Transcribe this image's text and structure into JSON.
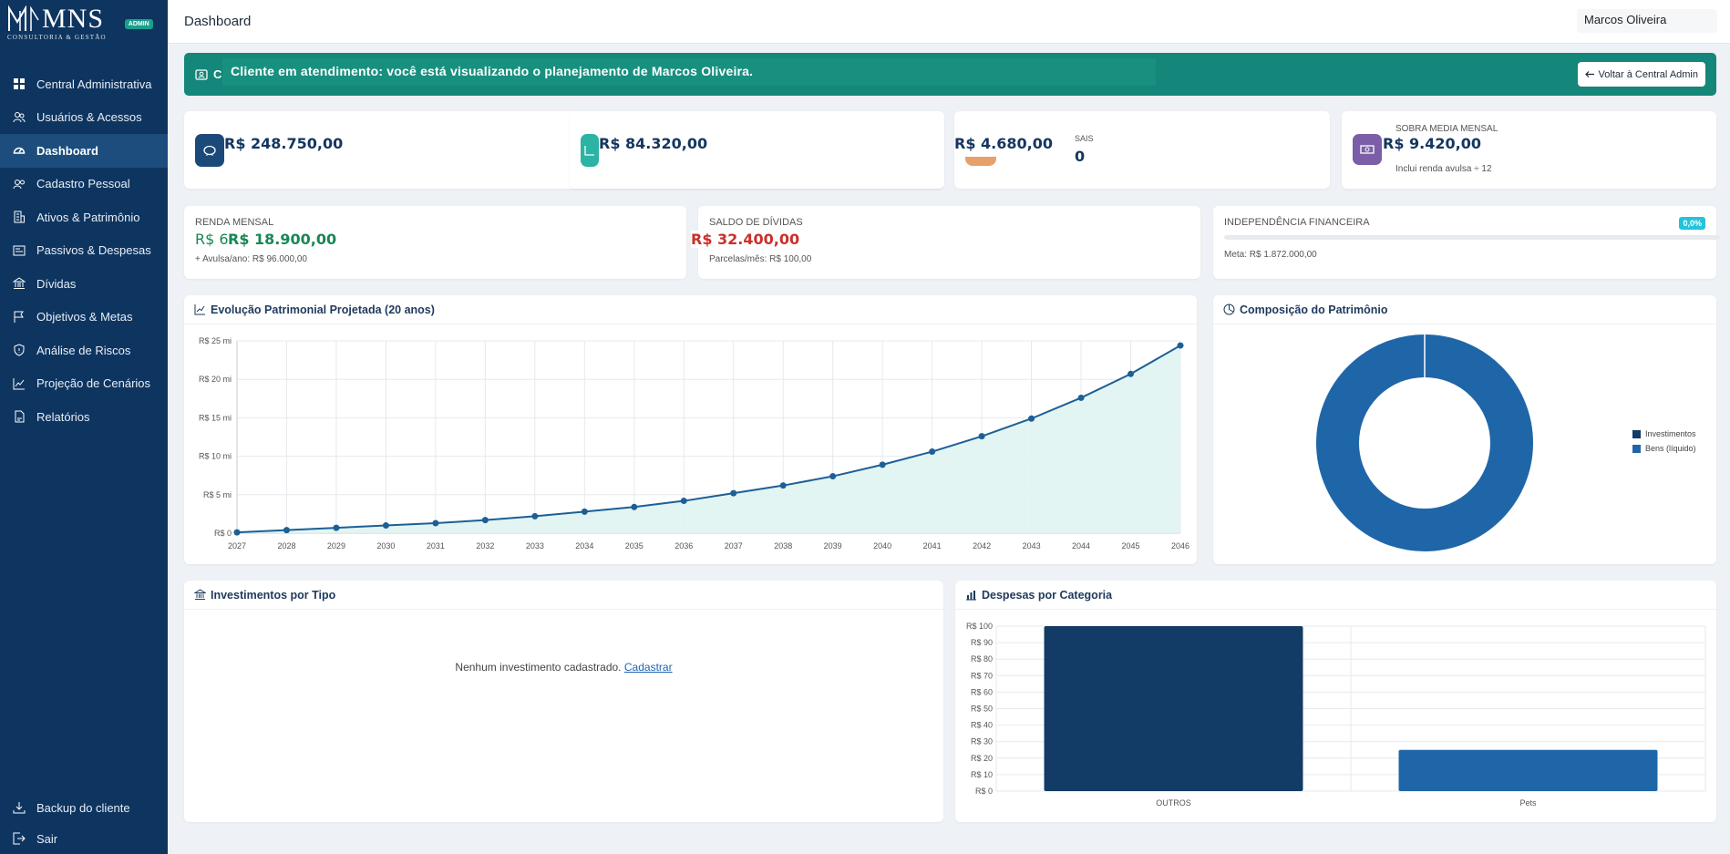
{
  "brand": {
    "name": "MNS",
    "sub": "CONSULTORIA & GESTÃO",
    "badge": "ADMIN"
  },
  "sidebar": {
    "items": [
      {
        "label": "Central Administrativa",
        "icon": "grid-icon"
      },
      {
        "label": "Usuários & Acessos",
        "icon": "users-icon"
      },
      {
        "label": "Dashboard",
        "icon": "speedometer-icon",
        "active": true
      },
      {
        "label": "Cadastro Pessoal",
        "icon": "person-card-icon"
      },
      {
        "label": "Ativos & Patrimônio",
        "icon": "building-icon"
      },
      {
        "label": "Passivos & Despesas",
        "icon": "receipt-icon"
      },
      {
        "label": "Dívidas",
        "icon": "bank-icon"
      },
      {
        "label": "Objetivos & Metas",
        "icon": "flag-icon"
      },
      {
        "label": "Análise de Riscos",
        "icon": "shield-icon"
      },
      {
        "label": "Projeção de Cenários",
        "icon": "trend-icon"
      },
      {
        "label": "Relatórios",
        "icon": "report-icon"
      }
    ],
    "bottom": [
      {
        "label": "Backup do cliente",
        "icon": "download-icon"
      },
      {
        "label": "Sair",
        "icon": "logout-icon"
      }
    ]
  },
  "header": {
    "title": "Dashboard",
    "user": "Marcos Oliveira"
  },
  "banner": {
    "stub": "Cl",
    "text": "Cliente em atendimento: você está visualizando o planejamento de Marcos Oliveira.",
    "back_label": "Voltar à Central Admin"
  },
  "stats": {
    "patrimonio": {
      "value": "R$ 248.750,00",
      "color": "#1b4a7a"
    },
    "investido": {
      "value": "R$ 84.320,00",
      "color": "#2bb3a3"
    },
    "despesas": {
      "value": "R$ 4.680,00",
      "small_label": "SAIS",
      "count": "0",
      "color": "#e8a06a"
    },
    "sobra": {
      "label": "SOBRA MÉDIA MENSAL",
      "value": "R$ 9.420,00",
      "note": "Inclui renda avulsa ÷ 12",
      "color": "#7b5ea7"
    }
  },
  "renda": {
    "label": "RENDA MENSAL",
    "value_stub": "R$ 6",
    "value": "R$ 18.900,00",
    "note": "+ Avulsa/ano: R$ 96.000,00"
  },
  "dividas": {
    "label": "SALDO DE DÍVIDAS",
    "value": "R$ 32.400,00",
    "note": "Parcelas/mês: R$ 100,00"
  },
  "independencia": {
    "label": "INDEPENDÊNCIA FINANCEIRA",
    "pct": "0,0%",
    "progress": 0.0,
    "meta": "Meta: R$ 1.872.000,00"
  },
  "evolution_card": {
    "title": "Evolução Patrimonial Projetada (20 anos)"
  },
  "composition_card": {
    "title": "Composição do Patrimônio"
  },
  "investments_card": {
    "title": "Investimentos por Tipo",
    "empty_text": "Nenhum investimento cadastrado.",
    "empty_link": "Cadastrar"
  },
  "expenses_card": {
    "title": "Despesas por Categoria"
  },
  "chart_data": [
    {
      "type": "area",
      "title": "Evolução Patrimonial Projetada (20 anos)",
      "x": [
        "2027",
        "2028",
        "2029",
        "2030",
        "2031",
        "2032",
        "2033",
        "2034",
        "2035",
        "2036",
        "2037",
        "2038",
        "2039",
        "2040",
        "2041",
        "2042",
        "2043",
        "2044",
        "2045",
        "2046"
      ],
      "values": [
        0.1,
        0.4,
        0.7,
        1.0,
        1.3,
        1.7,
        2.2,
        2.8,
        3.4,
        4.2,
        5.2,
        6.2,
        7.4,
        8.9,
        10.6,
        12.6,
        14.9,
        17.6,
        20.7,
        24.4
      ],
      "unit": "milhões de R$",
      "ylim": [
        0,
        25
      ],
      "yticks": [
        "R$ 0",
        "R$ 5 mi",
        "R$ 10 mi",
        "R$ 15 mi",
        "R$ 20 mi",
        "R$ 25 mi"
      ],
      "grid": true,
      "colors": {
        "line": "#1d5f96",
        "fill": "#dff4f1"
      }
    },
    {
      "type": "pie",
      "title": "Composição do Patrimônio",
      "labels": [
        "Investimentos",
        "Bens (líquido)"
      ],
      "values": [
        0,
        100
      ],
      "colors": [
        "#123b65",
        "#1f66a8"
      ],
      "legend": "right"
    },
    {
      "type": "bar",
      "title": "Despesas por Categoria",
      "categories": [
        "OUTROS",
        "Pets"
      ],
      "values": [
        100,
        25
      ],
      "ylim": [
        0,
        100
      ],
      "yticks": [
        "R$ 0",
        "R$ 10",
        "R$ 20",
        "R$ 30",
        "R$ 40",
        "R$ 50",
        "R$ 60",
        "R$ 70",
        "R$ 80",
        "R$ 90",
        "R$ 100"
      ],
      "colors": [
        "#123b65",
        "#1f66a8"
      ],
      "grid": true
    }
  ]
}
